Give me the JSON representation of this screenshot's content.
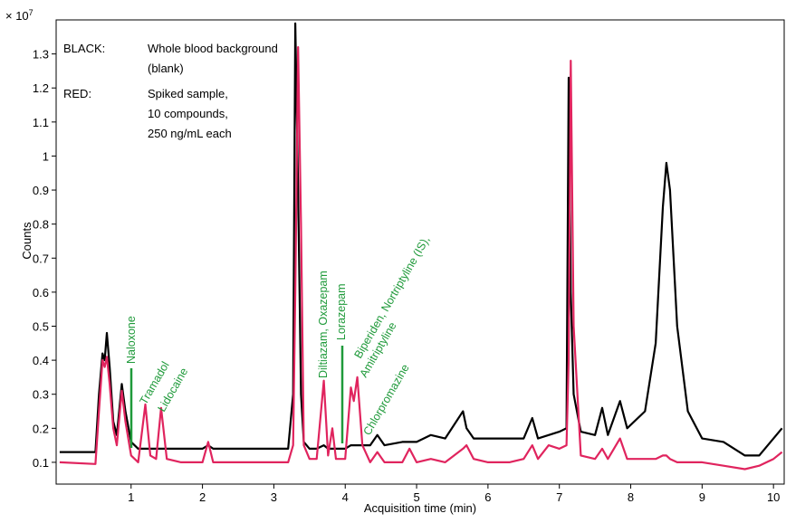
{
  "chart_data": {
    "type": "line",
    "y_axis_label": "Counts",
    "x_axis_label": "Acquisition time (min)",
    "y_scale": {
      "base": "× 10",
      "exponent": "7"
    },
    "legend_text": [
      [
        "BLACK:",
        "Whole blood background",
        "(blank)"
      ],
      [
        "RED:",
        "Spiked sample,",
        "10 compounds,",
        "250 ng/mL each"
      ]
    ],
    "annotations": [
      "Naloxone",
      "Tramadol",
      "Lidocaine",
      "Diltiazam, Oxazepam",
      "Lorazepam",
      "Biperiden, Nortriptyline (IS),",
      "Amitriptyline",
      "Chlorpromazine"
    ],
    "xlim": [
      -0.05,
      10.15
    ],
    "ylim": [
      0.036,
      1.4
    ],
    "xticks": [
      1,
      2,
      3,
      4,
      5,
      6,
      7,
      8,
      9,
      10
    ],
    "yticks": [
      0.1,
      0.2,
      0.3,
      0.4,
      0.5,
      0.6,
      0.7,
      0.8,
      0.9,
      1,
      1.1,
      1.2,
      1.3
    ],
    "x": [
      0.0,
      0.5,
      0.55,
      0.6,
      0.63,
      0.66,
      0.7,
      0.75,
      0.8,
      0.87,
      0.92,
      1.0,
      1.1,
      1.2,
      1.27,
      1.35,
      1.42,
      1.5,
      1.7,
      2.0,
      2.08,
      2.15,
      2.5,
      3.0,
      3.2,
      3.27,
      3.3,
      3.34,
      3.38,
      3.42,
      3.5,
      3.6,
      3.7,
      3.76,
      3.82,
      3.87,
      4.0,
      4.08,
      4.12,
      4.17,
      4.24,
      4.35,
      4.45,
      4.55,
      4.8,
      4.9,
      5.0,
      5.2,
      5.4,
      5.65,
      5.7,
      5.8,
      6.0,
      6.3,
      6.5,
      6.62,
      6.7,
      6.85,
      7.0,
      7.1,
      7.13,
      7.16,
      7.2,
      7.3,
      7.5,
      7.6,
      7.68,
      7.85,
      7.95,
      8.2,
      8.35,
      8.45,
      8.5,
      8.55,
      8.65,
      8.8,
      9.0,
      9.3,
      9.6,
      9.8,
      10.0,
      10.12
    ],
    "series": [
      {
        "name": "BLACK",
        "color": "#000000",
        "values": [
          0.13,
          0.13,
          0.3,
          0.42,
          0.4,
          0.48,
          0.38,
          0.22,
          0.18,
          0.33,
          0.25,
          0.16,
          0.14,
          0.14,
          0.14,
          0.14,
          0.14,
          0.14,
          0.14,
          0.14,
          0.15,
          0.14,
          0.14,
          0.14,
          0.14,
          0.3,
          1.39,
          0.9,
          0.3,
          0.16,
          0.14,
          0.14,
          0.15,
          0.14,
          0.14,
          0.14,
          0.14,
          0.15,
          0.15,
          0.15,
          0.15,
          0.15,
          0.18,
          0.15,
          0.16,
          0.16,
          0.16,
          0.18,
          0.17,
          0.25,
          0.2,
          0.17,
          0.17,
          0.17,
          0.17,
          0.23,
          0.17,
          0.18,
          0.19,
          0.2,
          1.23,
          0.6,
          0.3,
          0.19,
          0.18,
          0.26,
          0.18,
          0.28,
          0.2,
          0.25,
          0.45,
          0.85,
          0.98,
          0.9,
          0.5,
          0.25,
          0.17,
          0.16,
          0.12,
          0.12,
          0.17,
          0.2
        ]
      },
      {
        "name": "RED",
        "color": "#e0245e",
        "values": [
          0.1,
          0.095,
          0.25,
          0.4,
          0.38,
          0.41,
          0.33,
          0.2,
          0.15,
          0.31,
          0.22,
          0.12,
          0.1,
          0.27,
          0.12,
          0.11,
          0.26,
          0.11,
          0.1,
          0.1,
          0.16,
          0.1,
          0.1,
          0.1,
          0.1,
          0.15,
          0.6,
          1.32,
          0.8,
          0.15,
          0.11,
          0.11,
          0.34,
          0.12,
          0.2,
          0.11,
          0.11,
          0.32,
          0.28,
          0.35,
          0.15,
          0.1,
          0.13,
          0.1,
          0.1,
          0.14,
          0.1,
          0.11,
          0.1,
          0.14,
          0.15,
          0.11,
          0.1,
          0.1,
          0.11,
          0.15,
          0.11,
          0.15,
          0.14,
          0.15,
          0.4,
          1.28,
          0.5,
          0.12,
          0.11,
          0.14,
          0.11,
          0.17,
          0.11,
          0.11,
          0.11,
          0.12,
          0.12,
          0.11,
          0.1,
          0.1,
          0.1,
          0.09,
          0.08,
          0.09,
          0.11,
          0.13
        ]
      }
    ]
  }
}
